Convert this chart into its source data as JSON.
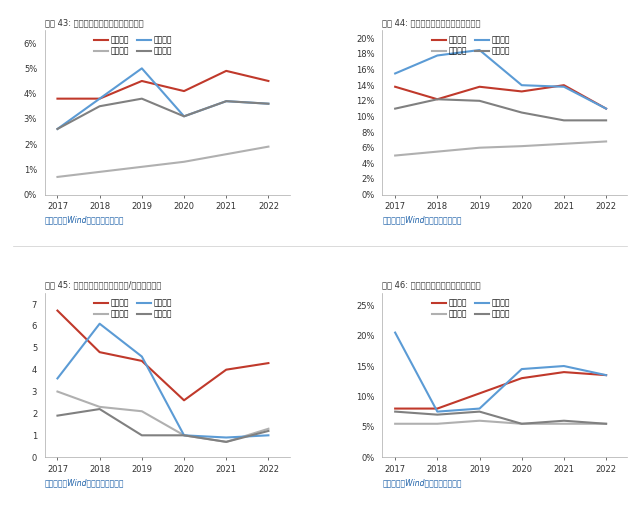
{
  "years": [
    2017,
    2018,
    2019,
    2020,
    2021,
    2022
  ],
  "chart1": {
    "title": "图表 43: 公司及可比公司研发费用率对比",
    "xinquan": [
      3.8,
      3.8,
      4.5,
      4.1,
      4.9,
      4.5
    ],
    "yiqi": [
      0.7,
      0.9,
      1.1,
      1.3,
      1.6,
      1.9
    ],
    "changshu": [
      2.6,
      3.8,
      5.0,
      3.1,
      3.7,
      3.6
    ],
    "ningbo": [
      2.6,
      3.5,
      3.8,
      3.1,
      3.7,
      3.6
    ],
    "ylim": [
      0,
      0.065
    ],
    "yticks": [
      0,
      0.01,
      0.02,
      0.03,
      0.04,
      0.05,
      0.06
    ],
    "ytick_labels": [
      "0%",
      "1%",
      "2%",
      "3%",
      "4%",
      "5%",
      "6%"
    ]
  },
  "chart2": {
    "title": "图表 44: 公司及可比公司期间费用率对比",
    "xinquan": [
      13.8,
      12.2,
      13.8,
      13.2,
      14.0,
      11.0
    ],
    "yiqi": [
      5.0,
      5.5,
      6.0,
      6.2,
      6.5,
      6.8
    ],
    "changshu": [
      15.5,
      17.8,
      18.5,
      14.0,
      13.8,
      11.0
    ],
    "ningbo": [
      11.0,
      12.2,
      12.0,
      10.5,
      9.5,
      9.5
    ],
    "ylim": [
      0,
      0.21
    ],
    "yticks": [
      0,
      0.02,
      0.04,
      0.06,
      0.08,
      0.1,
      0.12,
      0.14,
      0.16,
      0.18,
      0.2
    ],
    "ytick_labels": [
      "0%",
      "2%",
      "4%",
      "6%",
      "8%",
      "10%",
      "12%",
      "14%",
      "16%",
      "18%",
      "20%"
    ]
  },
  "chart3": {
    "title": "图表 45: 公司及可比公司资本开支/折旧摊销对比",
    "xinquan": [
      6.7,
      4.8,
      4.4,
      2.6,
      4.0,
      4.3
    ],
    "yiqi": [
      3.0,
      2.3,
      2.1,
      1.0,
      0.7,
      1.3
    ],
    "changshu": [
      3.6,
      6.1,
      4.6,
      1.0,
      0.9,
      1.0
    ],
    "ningbo": [
      1.9,
      2.2,
      1.0,
      1.0,
      0.7,
      1.2
    ],
    "ylim": [
      0,
      7.5
    ],
    "yticks": [
      0,
      1,
      2,
      3,
      4,
      5,
      6,
      7
    ],
    "ytick_labels": [
      "0",
      "1",
      "2",
      "3",
      "4",
      "5",
      "6",
      "7"
    ]
  },
  "chart4": {
    "title": "图表 46: 公司及可比公司销售利润率对比",
    "xinquan": [
      8.0,
      8.0,
      10.5,
      13.0,
      14.0,
      13.5
    ],
    "yiqi": [
      5.5,
      5.5,
      6.0,
      5.5,
      5.5,
      5.5
    ],
    "changshu": [
      20.5,
      7.5,
      8.0,
      14.5,
      15.0,
      13.5
    ],
    "ningbo": [
      7.5,
      7.0,
      7.5,
      5.5,
      6.0,
      5.5
    ],
    "ylim": [
      0,
      0.27
    ],
    "yticks": [
      0,
      0.05,
      0.1,
      0.15,
      0.2,
      0.25
    ],
    "ytick_labels": [
      "0%",
      "5%",
      "10%",
      "15%",
      "20%",
      "25%"
    ]
  },
  "colors": {
    "xinquan": "#c0392b",
    "yiqi": "#b0b0b0",
    "changshu": "#5b9bd5",
    "ningbo": "#808080"
  },
  "legend_labels": {
    "xinquan": "新泉股份",
    "yiqi": "一汽富维",
    "changshu": "常熟汽饰",
    "ningbo": "宁波华翔"
  },
  "source_text": "资料来源：Wind，国盛证券研究所",
  "background_color": "#ffffff"
}
